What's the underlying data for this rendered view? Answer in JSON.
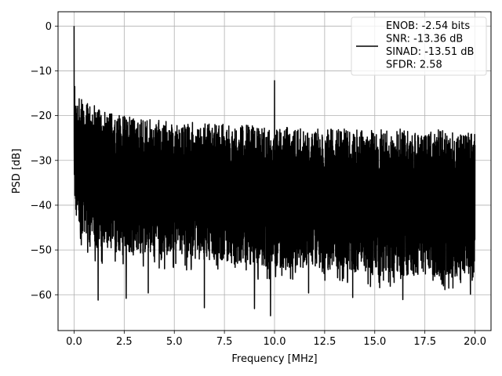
{
  "chart_data": {
    "type": "line",
    "xlabel": "Frequency [MHz]",
    "ylabel": "PSD [dB]",
    "xlim": [
      -0.8,
      20.8
    ],
    "ylim": [
      -68,
      3.2
    ],
    "x_ticks": [
      0.0,
      2.5,
      5.0,
      7.5,
      10.0,
      12.5,
      15.0,
      17.5,
      20.0
    ],
    "x_tick_labels": [
      "0.0",
      "2.5",
      "5.0",
      "7.5",
      "10.0",
      "12.5",
      "15.0",
      "17.5",
      "20.0"
    ],
    "y_ticks": [
      0,
      -10,
      -20,
      -30,
      -40,
      -50,
      -60
    ],
    "y_tick_labels": [
      "0",
      "−10",
      "−20",
      "−30",
      "−40",
      "−50",
      "−60"
    ],
    "grid": true,
    "legend_position": "top-right",
    "series": [
      {
        "name": "ENOB: -2.54 bits\nSNR: -13.36 dB\nSINAD: -13.51 dB\nSFDR: 2.58",
        "color": "#000000",
        "peaks": [
          {
            "x": 0.0,
            "y": 0.0
          },
          {
            "x": 10.0,
            "y": -12.2
          }
        ],
        "upper_envelope": [
          [
            0.05,
            -13
          ],
          [
            0.3,
            -16
          ],
          [
            0.7,
            -17
          ],
          [
            1.5,
            -19
          ],
          [
            2.5,
            -20
          ],
          [
            4,
            -21
          ],
          [
            6,
            -21.5
          ],
          [
            8,
            -22
          ],
          [
            10,
            -22.5
          ],
          [
            12,
            -23
          ],
          [
            15,
            -23
          ],
          [
            18,
            -23
          ],
          [
            20,
            -24
          ]
        ],
        "lower_envelope": [
          [
            0.05,
            -42
          ],
          [
            0.5,
            -48
          ],
          [
            1,
            -50
          ],
          [
            2,
            -50
          ],
          [
            4,
            -51
          ],
          [
            6,
            -52
          ],
          [
            8,
            -53
          ],
          [
            10,
            -54
          ],
          [
            12,
            -54
          ],
          [
            14,
            -55
          ],
          [
            16,
            -56
          ],
          [
            18,
            -56
          ],
          [
            20,
            -57
          ]
        ],
        "notable_minima": [
          {
            "x": 1.2,
            "y": -61.2
          },
          {
            "x": 2.6,
            "y": -60.8
          },
          {
            "x": 3.7,
            "y": -59.6
          },
          {
            "x": 6.5,
            "y": -62.9
          },
          {
            "x": 9.0,
            "y": -63.1
          },
          {
            "x": 9.8,
            "y": -64.7
          },
          {
            "x": 11.7,
            "y": -59.6
          },
          {
            "x": 13.9,
            "y": -60.6
          },
          {
            "x": 16.4,
            "y": -61.1
          },
          {
            "x": 18.9,
            "y": -58.5
          }
        ],
        "approx_points": 3000
      }
    ]
  }
}
